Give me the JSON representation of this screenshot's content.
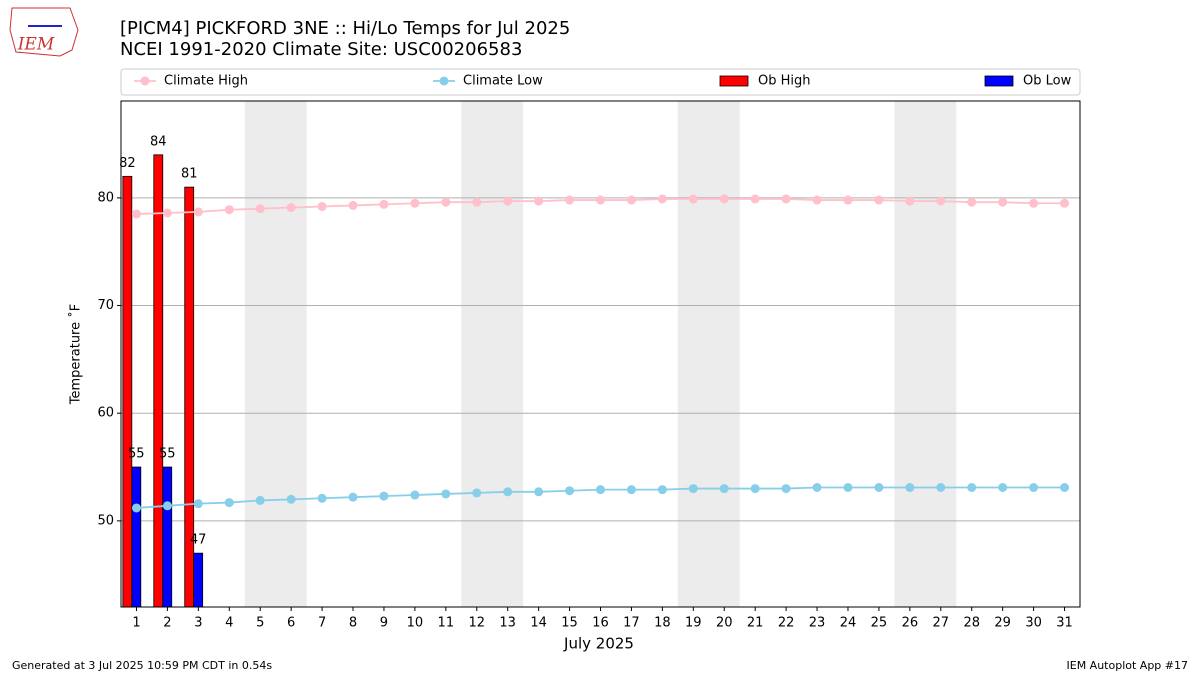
{
  "chart_data": {
    "type": "bar",
    "title": "[PICM4] PICKFORD 3NE :: Hi/Lo Temps for Jul 2025",
    "subtitle": "NCEI 1991-2020 Climate Site: USC00206583",
    "logo": "IEM",
    "x_label": "July 2025",
    "y_label": "Temperature ˚F",
    "footer_left": "Generated at 3 Jul 2025 10:59 PM CDT in 0.54s",
    "footer_right": "IEM Autoplot App #17",
    "x": [
      1,
      2,
      3,
      4,
      5,
      6,
      7,
      8,
      9,
      10,
      11,
      12,
      13,
      14,
      15,
      16,
      17,
      18,
      19,
      20,
      21,
      22,
      23,
      24,
      25,
      26,
      27,
      28,
      29,
      30,
      31
    ],
    "xlim": [
      0.5,
      31.5
    ],
    "xticks": [
      1,
      2,
      3,
      4,
      5,
      6,
      7,
      8,
      9,
      10,
      11,
      12,
      13,
      14,
      15,
      16,
      17,
      18,
      19,
      20,
      21,
      22,
      23,
      24,
      25,
      26,
      27,
      28,
      29,
      30,
      31
    ],
    "ylim": [
      42,
      89
    ],
    "yticks": [
      50,
      60,
      70,
      80
    ],
    "grid": true,
    "shaded_ranges": [
      [
        4.5,
        6.5
      ],
      [
        11.5,
        13.5
      ],
      [
        18.5,
        20.5
      ],
      [
        25.5,
        27.5
      ]
    ],
    "series": [
      {
        "name": "Climate High",
        "type": "line",
        "color": "#ffc0cb",
        "values": [
          78.5,
          78.6,
          78.7,
          78.9,
          79.0,
          79.1,
          79.2,
          79.3,
          79.4,
          79.5,
          79.6,
          79.6,
          79.7,
          79.7,
          79.8,
          79.8,
          79.8,
          79.9,
          79.9,
          79.9,
          79.9,
          79.9,
          79.8,
          79.8,
          79.8,
          79.7,
          79.7,
          79.6,
          79.6,
          79.5,
          79.5
        ]
      },
      {
        "name": "Climate Low",
        "type": "line",
        "color": "#87ceeb",
        "values": [
          51.2,
          51.4,
          51.6,
          51.7,
          51.9,
          52.0,
          52.1,
          52.2,
          52.3,
          52.4,
          52.5,
          52.6,
          52.7,
          52.7,
          52.8,
          52.9,
          52.9,
          52.9,
          53.0,
          53.0,
          53.0,
          53.0,
          53.1,
          53.1,
          53.1,
          53.1,
          53.1,
          53.1,
          53.1,
          53.1,
          53.1
        ]
      },
      {
        "name": "Ob High",
        "type": "bar",
        "color": "#ff0000",
        "values": [
          82,
          84,
          81,
          null,
          null,
          null,
          null,
          null,
          null,
          null,
          null,
          null,
          null,
          null,
          null,
          null,
          null,
          null,
          null,
          null,
          null,
          null,
          null,
          null,
          null,
          null,
          null,
          null,
          null,
          null,
          null
        ]
      },
      {
        "name": "Ob Low",
        "type": "bar",
        "color": "#0000ff",
        "values": [
          55,
          55,
          47,
          null,
          null,
          null,
          null,
          null,
          null,
          null,
          null,
          null,
          null,
          null,
          null,
          null,
          null,
          null,
          null,
          null,
          null,
          null,
          null,
          null,
          null,
          null,
          null,
          null,
          null,
          null,
          null
        ]
      }
    ]
  }
}
